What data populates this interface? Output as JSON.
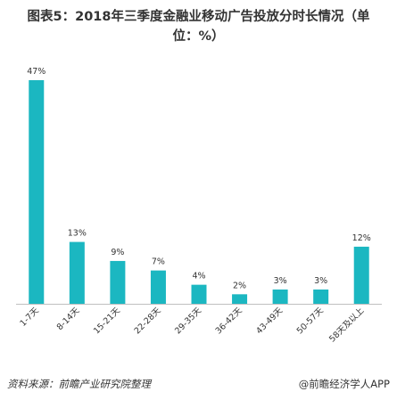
{
  "header": {
    "title_line1": "图表5：2018年三季度金融业移动广告投放分时长情况（单",
    "title_line2": "位：%）"
  },
  "footer": {
    "source": "资料来源：前瞻产业研究院整理",
    "brand": "@前瞻经济学人APP"
  },
  "colors": {
    "bar": "#1BB7C1",
    "axis": "#BFBFBF",
    "label": "#333333"
  },
  "chart_data": {
    "type": "bar",
    "title": "图表5：2018年三季度金融业移动广告投放分时长情况（单位：%）",
    "categories": [
      "1-7天",
      "8-14天",
      "15-21天",
      "22-28天",
      "29-35天",
      "36-42天",
      "43-49天",
      "50-57天",
      "58天及以上"
    ],
    "values": [
      47,
      13,
      9,
      7,
      4,
      2,
      3,
      3,
      12
    ],
    "value_labels": [
      "47%",
      "13%",
      "9%",
      "7%",
      "4%",
      "2%",
      "3%",
      "3%",
      "12%"
    ],
    "ylim": [
      0,
      47
    ],
    "grid": false,
    "legend": "none"
  }
}
